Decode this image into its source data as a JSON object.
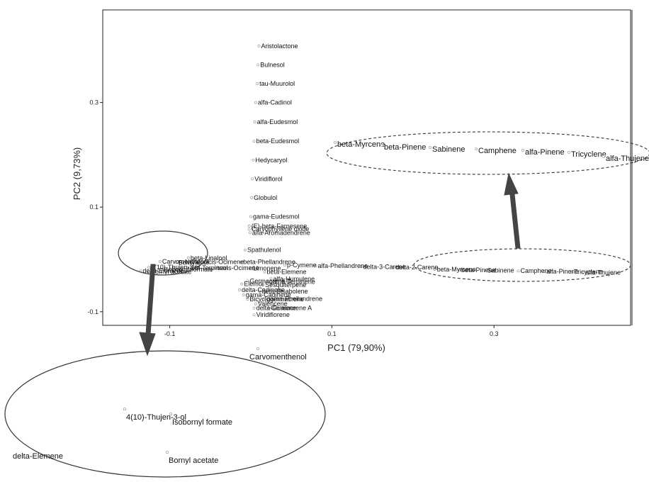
{
  "chart_data": {
    "type": "scatter",
    "title": "",
    "xlabel": "PC1 (79,90%)",
    "ylabel": "PC2 (9,73%)",
    "xlim": [
      -0.15,
      0.37
    ],
    "ylim": [
      -0.115,
      0.43
    ],
    "xticks": [
      -0.1,
      0.1,
      0.3
    ],
    "yticks": [
      -0.1,
      0.1,
      0.3
    ],
    "xtick_labels": [
      "-0.1",
      "0.1",
      "0.3"
    ],
    "ytick_labels": [
      "-0.1",
      "0.1",
      "0.3"
    ],
    "grid": false,
    "points": [
      {
        "label": "Aristolactone",
        "x": 0.01,
        "y": 0.408
      },
      {
        "label": "Bulnesol",
        "x": 0.009,
        "y": 0.372
      },
      {
        "label": "tau-Muurolol",
        "x": 0.008,
        "y": 0.336
      },
      {
        "label": "alfa-Cadinol",
        "x": 0.006,
        "y": 0.3
      },
      {
        "label": "alfa-Eudesmol",
        "x": 0.005,
        "y": 0.263
      },
      {
        "label": "beta-Eudesmol",
        "x": 0.004,
        "y": 0.226
      },
      {
        "label": "Hedycaryol",
        "x": 0.003,
        "y": 0.19
      },
      {
        "label": "Viridiflorol",
        "x": 0.002,
        "y": 0.154
      },
      {
        "label": "Globulol",
        "x": 0.001,
        "y": 0.118
      },
      {
        "label": "gama-Eudesmol",
        "x": 0.0,
        "y": 0.082
      },
      {
        "label": "(E)-beta-Farnesene",
        "x": -0.002,
        "y": 0.064
      },
      {
        "label": "Caryophyllene oxide",
        "x": -0.002,
        "y": 0.058
      },
      {
        "label": "alfa-Aromadendrene",
        "x": -0.001,
        "y": 0.051
      },
      {
        "label": "Spathulenol",
        "x": -0.007,
        "y": 0.018
      },
      {
        "label": "beta-Linalool",
        "x": -0.077,
        "y": 0.003
      },
      {
        "label": "Carvomenthenol",
        "x": -0.112,
        "y": -0.004
      },
      {
        "label": "Bornylenol",
        "x": -0.092,
        "y": -0.006
      },
      {
        "label": "Neral",
        "x": -0.084,
        "y": -0.005
      },
      {
        "label": "cis-Ocimene",
        "x": -0.055,
        "y": -0.005
      },
      {
        "label": "beta-Phellandrene",
        "x": -0.012,
        "y": -0.005
      },
      {
        "label": "4(10)-Thujen-3-ol",
        "x": -0.126,
        "y": -0.015
      },
      {
        "label": "Isobornyl formate",
        "x": -0.11,
        "y": -0.019
      },
      {
        "label": "alfa-Terpineol",
        "x": -0.078,
        "y": -0.016
      },
      {
        "label": "trans-Ocimene",
        "x": -0.044,
        "y": -0.016
      },
      {
        "label": "delta-Elemene",
        "x": -0.136,
        "y": -0.022
      },
      {
        "label": "Bornyl acetate",
        "x": -0.126,
        "y": -0.024
      },
      {
        "label": "Limonene",
        "x": 0.0,
        "y": -0.017
      },
      {
        "label": "p-Cymene",
        "x": 0.042,
        "y": -0.011
      },
      {
        "label": "alfa-Phellandrene",
        "x": 0.08,
        "y": -0.012
      },
      {
        "label": "delta-3-Carene",
        "x": 0.136,
        "y": -0.014
      },
      {
        "label": "delta-2-Carene",
        "x": 0.176,
        "y": -0.015
      },
      {
        "label": "beta-Elemene",
        "x": 0.017,
        "y": -0.024
      },
      {
        "label": "alfa-Humulene",
        "x": 0.025,
        "y": -0.037
      },
      {
        "label": "Germacrene D",
        "x": -0.004,
        "y": -0.041
      },
      {
        "label": "gama-Terpinene",
        "x": 0.02,
        "y": -0.043
      },
      {
        "label": "Elemol",
        "x": -0.011,
        "y": -0.047
      },
      {
        "label": "Sesquiterpene",
        "x": 0.015,
        "y": -0.049
      },
      {
        "label": "delta-Cadinene",
        "x": -0.014,
        "y": -0.058
      },
      {
        "label": "beta-Bisabolene",
        "x": 0.011,
        "y": -0.061
      },
      {
        "label": "gama-Cadinene",
        "x": -0.009,
        "y": -0.068
      },
      {
        "label": "Bicyclogermacrene",
        "x": -0.004,
        "y": -0.076
      },
      {
        "label": "gama-Phellandrene",
        "x": 0.017,
        "y": -0.075
      },
      {
        "label": "Valencene",
        "x": 0.006,
        "y": -0.085
      },
      {
        "label": "delta-Guaiene",
        "x": 0.004,
        "y": -0.093
      },
      {
        "label": "Germacrene A",
        "x": 0.022,
        "y": -0.093
      },
      {
        "label": "Viridiflorene",
        "x": 0.004,
        "y": -0.106
      },
      {
        "label": "beta-Myrcene",
        "x": 0.227,
        "y": -0.019
      },
      {
        "label": "beta-Pinene",
        "x": 0.257,
        "y": -0.02
      },
      {
        "label": "Sabinene",
        "x": 0.289,
        "y": -0.021
      },
      {
        "label": "Camphene",
        "x": 0.33,
        "y": -0.022
      },
      {
        "label": "alfa-Pinene",
        "x": 0.362,
        "y": -0.023
      },
      {
        "label": "Tricyclene",
        "x": 0.396,
        "y": -0.024
      },
      {
        "label": "alfa-Thujene",
        "x": 0.41,
        "y": -0.025
      }
    ]
  },
  "inset_main": {
    "labels": [
      "beta-Myrcene",
      "beta-Pinene",
      "Sabinene",
      "Camphene",
      "alfa-Pinene",
      "Tricyclene",
      "alfa-Thujene"
    ]
  },
  "inset_left": {
    "labels": [
      "Carvomenthenol",
      "4(10)-Thujen-3-ol",
      "Isobornyl formate",
      "delta-Elemene",
      "Bornyl acetate"
    ]
  }
}
